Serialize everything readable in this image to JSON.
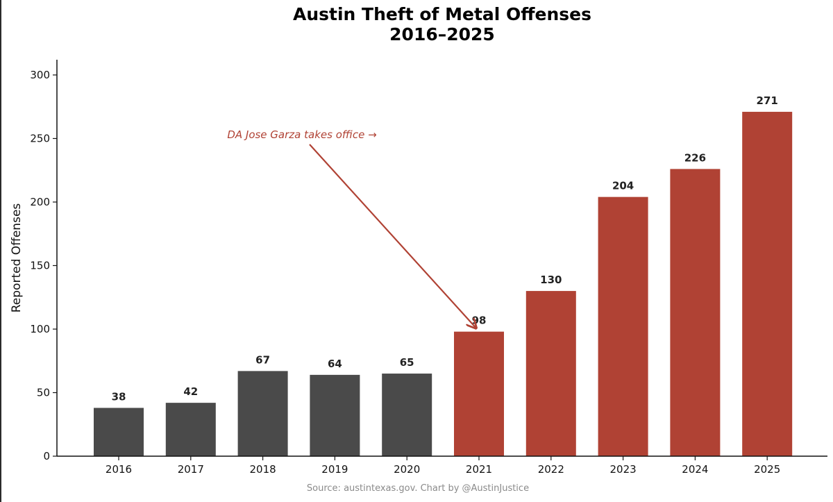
{
  "chart_data": {
    "type": "bar",
    "title_line1": "Austin Theft of Metal Offenses",
    "title_line2": "2016–2025",
    "ylabel": "Reported Offenses",
    "xlabel": "",
    "categories": [
      "2016",
      "2017",
      "2018",
      "2019",
      "2020",
      "2021",
      "2022",
      "2023",
      "2024",
      "2025"
    ],
    "values": [
      38,
      42,
      67,
      64,
      65,
      98,
      130,
      204,
      226,
      271
    ],
    "bar_colors": [
      "#4a4a4a",
      "#4a4a4a",
      "#4a4a4a",
      "#4a4a4a",
      "#4a4a4a",
      "#b04234",
      "#b04234",
      "#b04234",
      "#b04234",
      "#b04234"
    ],
    "ylim": [
      0,
      312
    ],
    "yticks": [
      0,
      50,
      100,
      150,
      200,
      250,
      300
    ],
    "grid": false,
    "annotation": {
      "text": "DA Jose Garza takes office →",
      "color": "#b04234",
      "points_to": "2021"
    },
    "source": "Source: austintexas.gov. Chart by @AustinJustice"
  }
}
